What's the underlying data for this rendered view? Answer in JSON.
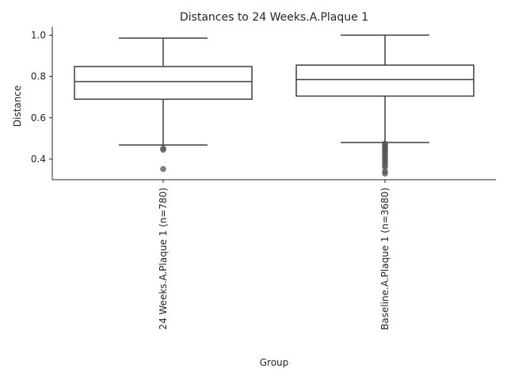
{
  "chart_data": {
    "type": "box",
    "title": "Distances to 24 Weeks.A.Plaque 1",
    "xlabel": "Group",
    "ylabel": "Distance",
    "ylim": [
      0.3,
      1.04
    ],
    "yticks": [
      0.4,
      0.6,
      0.8,
      1.0
    ],
    "ytick_labels": [
      "0.4",
      "0.6",
      "0.8",
      "1.0"
    ],
    "grid": false,
    "groups": [
      {
        "name": "24 Weeks.A.Plaque 1 (n=780)",
        "whisker_low": 0.468,
        "q1": 0.69,
        "median": 0.775,
        "q3": 0.848,
        "whisker_high": 0.986,
        "outliers": [
          0.452,
          0.445,
          0.352
        ]
      },
      {
        "name": "Baseline.A.Plaque 1 (n=3680)",
        "whisker_low": 0.48,
        "q1": 0.705,
        "median": 0.785,
        "q3": 0.855,
        "whisker_high": 1.0,
        "outliers": [
          0.475,
          0.468,
          0.46,
          0.452,
          0.445,
          0.438,
          0.43,
          0.42,
          0.41,
          0.4,
          0.392,
          0.382,
          0.37,
          0.36,
          0.34,
          0.33
        ]
      }
    ],
    "colors": {
      "box_edge": "#3f3f3f",
      "outlier": "#555555",
      "axis": "#262626"
    }
  }
}
